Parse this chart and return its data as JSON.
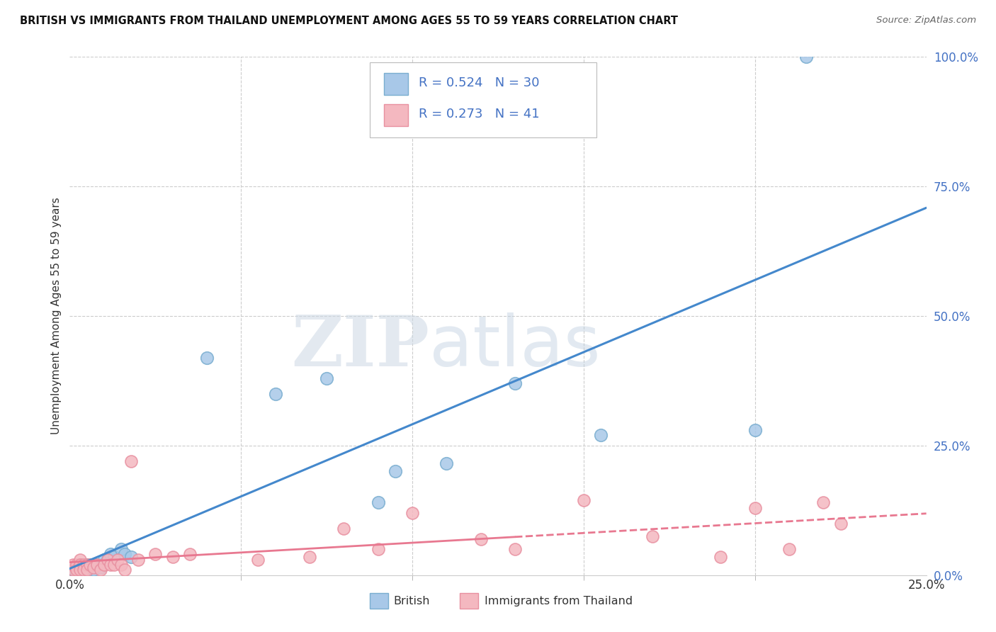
{
  "title": "BRITISH VS IMMIGRANTS FROM THAILAND UNEMPLOYMENT AMONG AGES 55 TO 59 YEARS CORRELATION CHART",
  "source": "Source: ZipAtlas.com",
  "ylabel": "Unemployment Among Ages 55 to 59 years",
  "legend_british_R": "0.524",
  "legend_british_N": "30",
  "legend_thai_R": "0.273",
  "legend_thai_N": "41",
  "british_color": "#a8c8e8",
  "thai_color": "#f4b8c0",
  "british_edge_color": "#7aaed0",
  "thai_edge_color": "#e890a0",
  "british_line_color": "#4488cc",
  "thai_line_color": "#e87890",
  "xlim": [
    0.0,
    0.25
  ],
  "ylim": [
    0.0,
    1.0
  ],
  "british_x": [
    0.001,
    0.002,
    0.002,
    0.003,
    0.003,
    0.004,
    0.004,
    0.005,
    0.005,
    0.006,
    0.007,
    0.008,
    0.009,
    0.01,
    0.011,
    0.012,
    0.013,
    0.015,
    0.016,
    0.018,
    0.04,
    0.06,
    0.075,
    0.09,
    0.095,
    0.11,
    0.13,
    0.155,
    0.2,
    0.215
  ],
  "british_y": [
    0.01,
    0.015,
    0.005,
    0.02,
    0.01,
    0.015,
    0.01,
    0.02,
    0.01,
    0.02,
    0.01,
    0.02,
    0.015,
    0.03,
    0.03,
    0.04,
    0.035,
    0.05,
    0.04,
    0.035,
    0.42,
    0.35,
    0.38,
    0.14,
    0.2,
    0.215,
    0.37,
    0.27,
    0.28,
    1.0
  ],
  "thai_x": [
    0.001,
    0.001,
    0.002,
    0.002,
    0.003,
    0.003,
    0.003,
    0.004,
    0.004,
    0.005,
    0.005,
    0.006,
    0.007,
    0.008,
    0.009,
    0.01,
    0.011,
    0.012,
    0.013,
    0.014,
    0.015,
    0.016,
    0.018,
    0.02,
    0.025,
    0.03,
    0.035,
    0.055,
    0.07,
    0.08,
    0.09,
    0.1,
    0.12,
    0.13,
    0.15,
    0.17,
    0.19,
    0.2,
    0.21,
    0.22,
    0.225
  ],
  "thai_y": [
    0.01,
    0.02,
    0.02,
    0.01,
    0.03,
    0.02,
    0.01,
    0.02,
    0.01,
    0.02,
    0.01,
    0.02,
    0.015,
    0.02,
    0.01,
    0.02,
    0.03,
    0.02,
    0.02,
    0.03,
    0.02,
    0.01,
    0.22,
    0.03,
    0.04,
    0.035,
    0.04,
    0.03,
    0.035,
    0.09,
    0.05,
    0.12,
    0.07,
    0.05,
    0.145,
    0.075,
    0.035,
    0.13,
    0.05,
    0.14,
    0.1
  ],
  "background_color": "#ffffff",
  "grid_color": "#cccccc"
}
